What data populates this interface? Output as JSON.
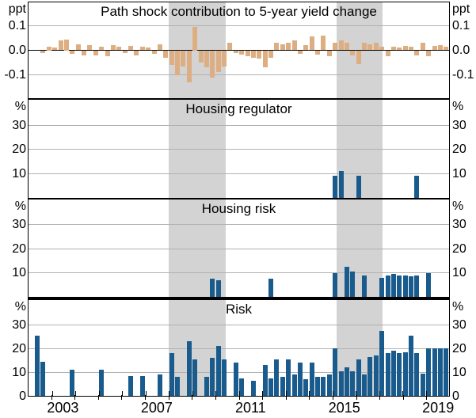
{
  "figure": {
    "description": "Four stacked quarterly bar-chart panels sharing one time axis",
    "background": "#ffffff",
    "band_color": "#d3d3d3",
    "gridline_color": "#b1b1b1",
    "tan_bar_color": "#dcae82",
    "blue_bar_color": "#1a5b8d"
  },
  "chart_data": {
    "type": "bar",
    "freq": "quarterly",
    "start_quarter": "2002Q1",
    "end_quarter": "2019Q4",
    "x_start": 2002,
    "x_end": 2020,
    "shaded_bands": [
      [
        2008.0,
        2010.45
      ],
      [
        2015.2,
        2017.15
      ]
    ],
    "x_tick_years": [
      2003,
      2004,
      2005,
      2006,
      2007,
      2008,
      2009,
      2010,
      2011,
      2012,
      2013,
      2014,
      2015,
      2016,
      2017,
      2018,
      2019
    ],
    "x_label_years": [
      "2003",
      "2007",
      "2011",
      "2015",
      "2019"
    ],
    "grid": true,
    "panels": [
      {
        "title": "Path shock contribution to 5-year yield change",
        "unit": "ppt",
        "ylim": [
          -0.195,
          0.195
        ],
        "yticks": [
          0.1,
          0.0,
          -0.1
        ],
        "ytick_labels": [
          "0.1",
          "0.0",
          "-0.1"
        ],
        "zero_line": true,
        "color": "#dcae82",
        "values": [
          0,
          0,
          -0.01,
          0.016,
          0.012,
          0.04,
          0.045,
          -0.015,
          0.025,
          -0.02,
          0.02,
          -0.022,
          0.015,
          -0.025,
          0.02,
          0.015,
          -0.012,
          0.018,
          -0.02,
          0.015,
          0.012,
          -0.015,
          0.025,
          -0.03,
          -0.06,
          -0.1,
          -0.065,
          -0.13,
          0.095,
          -0.05,
          -0.07,
          -0.11,
          -0.09,
          -0.065,
          0.03,
          -0.012,
          -0.018,
          -0.025,
          -0.03,
          -0.035,
          -0.07,
          -0.03,
          0.03,
          0.025,
          0.03,
          0.04,
          -0.015,
          0.02,
          0.055,
          -0.018,
          0.06,
          -0.025,
          0.03,
          0.04,
          0.03,
          -0.02,
          -0.055,
          0.03,
          0.025,
          0.03,
          0.015,
          -0.025,
          0.015,
          0.012,
          0.018,
          0.015,
          -0.02,
          0.03,
          -0.025,
          0.018,
          0.022,
          0.015
        ]
      },
      {
        "title": "Housing regulator",
        "unit": "%",
        "ylim": [
          0,
          40.5
        ],
        "yticks": [
          30,
          20,
          10
        ],
        "ytick_labels": [
          "30",
          "20",
          "10"
        ],
        "zero_line": false,
        "color": "#1a5b8d",
        "values": [
          0,
          0,
          0,
          0,
          0,
          0,
          0,
          0,
          0,
          0,
          0,
          0,
          0,
          0,
          0,
          0,
          0,
          0,
          0,
          0,
          0,
          0,
          0,
          0,
          0,
          0,
          0,
          0,
          0,
          0,
          0,
          0,
          0,
          0,
          0,
          0,
          0,
          0,
          0,
          0,
          0,
          0,
          0,
          0,
          0,
          0,
          0,
          0,
          0,
          0,
          0,
          0,
          9,
          11,
          0,
          0,
          9,
          0,
          0,
          0,
          0,
          0,
          0,
          0,
          0,
          0,
          9,
          0,
          0,
          0,
          0,
          0
        ]
      },
      {
        "title": "Housing risk",
        "unit": "%",
        "ylim": [
          0,
          40.5
        ],
        "yticks": [
          30,
          20,
          10
        ],
        "ytick_labels": [
          "30",
          "20",
          "10"
        ],
        "zero_line": false,
        "color": "#1a5b8d",
        "values": [
          0,
          0,
          0,
          0,
          0,
          0,
          0,
          0,
          0,
          0,
          0,
          0,
          0,
          0,
          0,
          0,
          0,
          0,
          0,
          0,
          0,
          0,
          0,
          0,
          0,
          0,
          0,
          0,
          0,
          0,
          0,
          7.5,
          7,
          0,
          0,
          0,
          0,
          0,
          0,
          0,
          0,
          7.5,
          0,
          0,
          0,
          0,
          0,
          0,
          0,
          0,
          0,
          0,
          10,
          0,
          12.5,
          10.5,
          0,
          9,
          0,
          0,
          8,
          9,
          9.5,
          9,
          9,
          8.5,
          9,
          0,
          10,
          0,
          0,
          0
        ]
      },
      {
        "title": "Risk",
        "unit": "%",
        "ylim": [
          0,
          40.5
        ],
        "yticks": [
          30,
          20,
          10,
          0
        ],
        "ytick_labels": [
          "30",
          "20",
          "10",
          "0"
        ],
        "zero_line": false,
        "color": "#1a5b8d",
        "values": [
          0,
          25.5,
          14.5,
          0,
          0,
          0,
          0,
          11,
          0,
          0,
          0,
          0,
          11,
          0,
          0,
          0,
          0,
          8.5,
          0,
          8.5,
          0,
          0,
          9,
          0,
          18,
          8,
          0,
          23,
          15.5,
          0,
          8,
          16,
          21,
          15.5,
          0,
          14,
          7.5,
          0,
          6.5,
          0,
          13,
          7.5,
          15.5,
          8,
          15.5,
          9,
          14,
          7,
          14,
          8,
          8,
          9,
          20,
          10.5,
          12,
          10.5,
          15.5,
          9,
          16.5,
          17,
          27.5,
          18,
          19,
          18,
          18.5,
          25.5,
          18,
          9.5,
          20,
          20,
          20,
          20
        ]
      }
    ]
  }
}
